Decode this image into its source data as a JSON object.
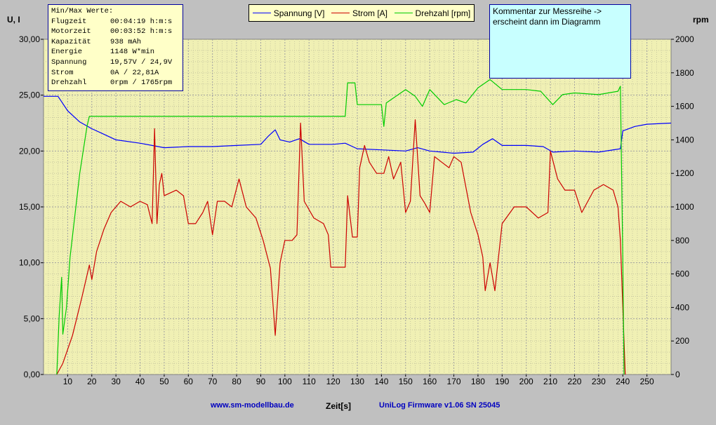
{
  "minmax": {
    "title": "Min/Max Werte:",
    "rows": [
      {
        "k": "Flugzeit",
        "v": "00:04:19 h:m:s"
      },
      {
        "k": "Motorzeit",
        "v": "00:03:52 h:m:s"
      },
      {
        "k": "Kapazität",
        "v": "938 mAh"
      },
      {
        "k": "Energie",
        "v": "1148 W*min"
      },
      {
        "k": "Spannung",
        "v": "19,57V / 24,9V"
      },
      {
        "k": "Strom",
        "v": "0A / 22,81A"
      },
      {
        "k": "Drehzahl",
        "v": "0rpm / 1765rpm"
      }
    ]
  },
  "comment": {
    "line1": "Kommentar zur Messreihe ->",
    "line2": "erscheint dann im Diagramm"
  },
  "footer": {
    "url": "www.sm-modellbau.de",
    "firmware": "UniLog Firmware v1.06 SN 25045"
  },
  "chart_data": {
    "type": "line",
    "xlabel": "Zeit[s]",
    "ylabel_left": "U, I",
    "ylabel_right": "rpm",
    "xlim": [
      0,
      260
    ],
    "ylim_left": [
      0,
      30
    ],
    "ylim_right": [
      0,
      2000
    ],
    "x_ticks": [
      10,
      20,
      30,
      40,
      50,
      60,
      70,
      80,
      90,
      100,
      110,
      120,
      130,
      140,
      150,
      160,
      170,
      180,
      190,
      200,
      210,
      220,
      230,
      240,
      250
    ],
    "y_left_ticks": [
      "0,00",
      "5,00",
      "10,00",
      "15,00",
      "20,00",
      "25,00",
      "30,00"
    ],
    "y_right_ticks": [
      "0",
      "200",
      "400",
      "600",
      "800",
      "1000",
      "1200",
      "1400",
      "1600",
      "1800",
      "2000"
    ],
    "grid": true,
    "legend_position": "top",
    "series": [
      {
        "name": "Spannung [V]",
        "axis": "left",
        "color": "#0000ff",
        "points": [
          [
            0,
            24.9
          ],
          [
            6,
            24.9
          ],
          [
            10,
            23.6
          ],
          [
            15,
            22.6
          ],
          [
            20,
            22.0
          ],
          [
            25,
            21.5
          ],
          [
            30,
            21.0
          ],
          [
            40,
            20.7
          ],
          [
            45,
            20.5
          ],
          [
            50,
            20.3
          ],
          [
            60,
            20.4
          ],
          [
            70,
            20.4
          ],
          [
            80,
            20.5
          ],
          [
            90,
            20.6
          ],
          [
            93,
            21.3
          ],
          [
            96,
            21.9
          ],
          [
            98,
            21.0
          ],
          [
            102,
            20.8
          ],
          [
            106,
            21.1
          ],
          [
            110,
            20.6
          ],
          [
            120,
            20.6
          ],
          [
            125,
            20.7
          ],
          [
            130,
            20.2
          ],
          [
            140,
            20.1
          ],
          [
            150,
            20.0
          ],
          [
            155,
            20.3
          ],
          [
            160,
            20.0
          ],
          [
            170,
            19.8
          ],
          [
            178,
            19.9
          ],
          [
            182,
            20.6
          ],
          [
            186,
            21.1
          ],
          [
            190,
            20.5
          ],
          [
            200,
            20.5
          ],
          [
            207,
            20.4
          ],
          [
            211,
            19.9
          ],
          [
            220,
            20.0
          ],
          [
            230,
            19.9
          ],
          [
            239,
            20.2
          ],
          [
            240,
            21.8
          ],
          [
            245,
            22.2
          ],
          [
            250,
            22.4
          ],
          [
            260,
            22.5
          ]
        ]
      },
      {
        "name": "Strom [A]",
        "axis": "left",
        "color": "#cc0000",
        "points": [
          [
            5.5,
            0
          ],
          [
            8,
            1
          ],
          [
            12,
            3.5
          ],
          [
            16,
            7
          ],
          [
            19,
            9.8
          ],
          [
            20,
            8.5
          ],
          [
            22,
            11
          ],
          [
            25,
            13
          ],
          [
            28,
            14.5
          ],
          [
            32,
            15.5
          ],
          [
            36,
            15
          ],
          [
            40,
            15.5
          ],
          [
            43,
            15.2
          ],
          [
            45,
            13.5
          ],
          [
            46,
            22
          ],
          [
            47,
            13.5
          ],
          [
            48,
            17
          ],
          [
            49,
            18
          ],
          [
            50,
            16
          ],
          [
            55,
            16.5
          ],
          [
            58,
            16
          ],
          [
            60,
            13.5
          ],
          [
            63,
            13.5
          ],
          [
            66,
            14.5
          ],
          [
            68,
            15.5
          ],
          [
            70,
            12.5
          ],
          [
            72,
            15.5
          ],
          [
            75,
            15.5
          ],
          [
            78,
            15
          ],
          [
            81,
            17.5
          ],
          [
            84,
            15
          ],
          [
            88,
            14
          ],
          [
            91,
            12
          ],
          [
            94,
            9.5
          ],
          [
            96,
            3.5
          ],
          [
            98,
            10
          ],
          [
            100,
            12
          ],
          [
            103,
            12
          ],
          [
            105,
            12.5
          ],
          [
            106.5,
            22.5
          ],
          [
            108,
            15.5
          ],
          [
            112,
            14
          ],
          [
            116,
            13.5
          ],
          [
            118,
            12.5
          ],
          [
            119,
            9.6
          ],
          [
            125,
            9.6
          ],
          [
            126,
            16
          ],
          [
            128,
            12.3
          ],
          [
            130,
            12.3
          ],
          [
            131,
            18.5
          ],
          [
            133,
            20.5
          ],
          [
            135,
            19
          ],
          [
            138,
            18
          ],
          [
            141,
            18
          ],
          [
            143,
            19.5
          ],
          [
            145,
            17.5
          ],
          [
            148,
            19
          ],
          [
            150,
            14.5
          ],
          [
            152,
            15.5
          ],
          [
            154,
            22.8
          ],
          [
            156,
            16
          ],
          [
            158,
            15.3
          ],
          [
            160,
            14.5
          ],
          [
            162,
            19.5
          ],
          [
            165,
            19
          ],
          [
            168,
            18.5
          ],
          [
            170,
            19.5
          ],
          [
            173,
            19
          ],
          [
            177,
            14.5
          ],
          [
            180,
            12.5
          ],
          [
            182,
            10.5
          ],
          [
            183,
            7.5
          ],
          [
            185,
            10
          ],
          [
            187,
            7.5
          ],
          [
            190,
            13.5
          ],
          [
            195,
            15
          ],
          [
            200,
            15
          ],
          [
            205,
            14
          ],
          [
            209,
            14.5
          ],
          [
            210,
            20
          ],
          [
            213,
            17.5
          ],
          [
            216,
            16.5
          ],
          [
            220,
            16.5
          ],
          [
            223,
            14.5
          ],
          [
            228,
            16.5
          ],
          [
            232,
            17
          ],
          [
            236,
            16.5
          ],
          [
            238,
            15
          ],
          [
            239,
            12
          ],
          [
            241,
            0
          ]
        ]
      },
      {
        "name": "Drehzahl [rpm]",
        "axis": "right",
        "color": "#00cc00",
        "points": [
          [
            5.5,
            0
          ],
          [
            6.5,
            350
          ],
          [
            7.5,
            580
          ],
          [
            8,
            240
          ],
          [
            9.5,
            400
          ],
          [
            11,
            700
          ],
          [
            15,
            1200
          ],
          [
            18,
            1480
          ],
          [
            19,
            1540
          ],
          [
            125,
            1540
          ],
          [
            126,
            1740
          ],
          [
            129,
            1740
          ],
          [
            130,
            1610
          ],
          [
            140,
            1610
          ],
          [
            141,
            1480
          ],
          [
            142,
            1620
          ],
          [
            150,
            1700
          ],
          [
            154,
            1660
          ],
          [
            157,
            1600
          ],
          [
            160,
            1700
          ],
          [
            166,
            1610
          ],
          [
            171,
            1640
          ],
          [
            175,
            1620
          ],
          [
            180,
            1710
          ],
          [
            185,
            1760
          ],
          [
            190,
            1700
          ],
          [
            200,
            1700
          ],
          [
            206,
            1690
          ],
          [
            211,
            1610
          ],
          [
            215,
            1670
          ],
          [
            220,
            1680
          ],
          [
            230,
            1670
          ],
          [
            238,
            1690
          ],
          [
            239,
            1720
          ],
          [
            240,
            700
          ],
          [
            240.5,
            0
          ]
        ]
      }
    ]
  }
}
